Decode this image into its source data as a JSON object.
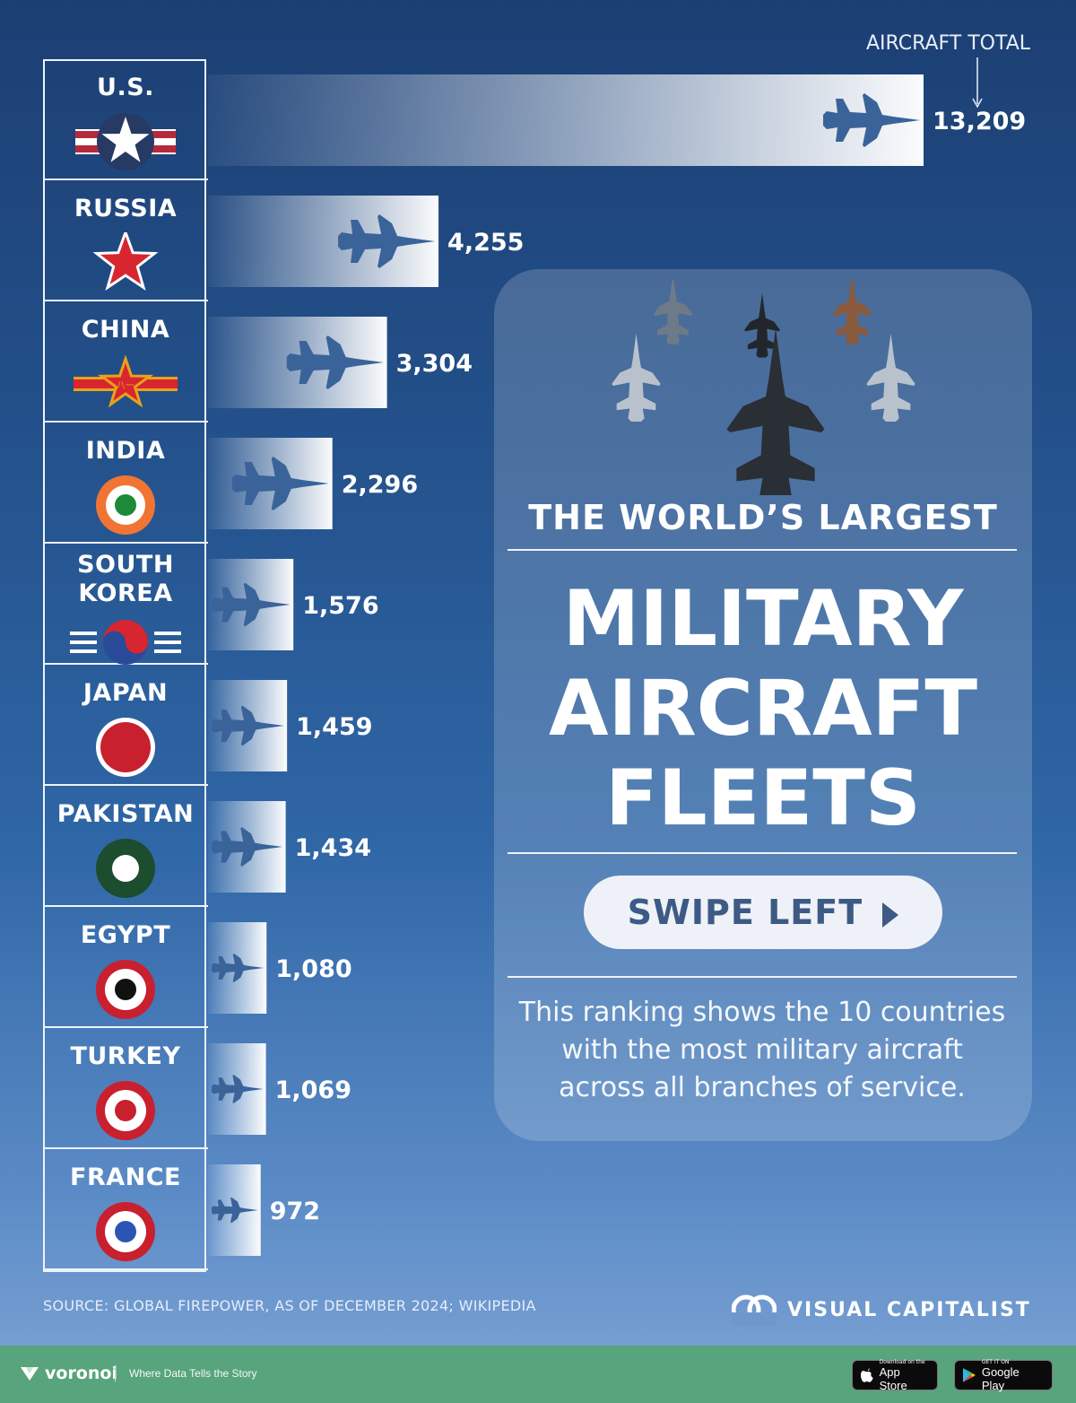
{
  "chart_data": {
    "type": "bar",
    "orientation": "horizontal",
    "value_label": "AIRCRAFT TOTAL",
    "categories": [
      "U.S.",
      "RUSSIA",
      "CHINA",
      "INDIA",
      "SOUTH KOREA",
      "JAPAN",
      "PAKISTAN",
      "EGYPT",
      "TURKEY",
      "FRANCE"
    ],
    "values": [
      13209,
      4255,
      3304,
      2296,
      1576,
      1459,
      1434,
      1080,
      1069,
      972
    ],
    "value_labels": [
      "13,209",
      "4,255",
      "3,304",
      "2,296",
      "1,576",
      "1,459",
      "1,434",
      "1,080",
      "1,069",
      "972"
    ],
    "xlim": [
      0,
      13209
    ],
    "grid": false,
    "legend": "none"
  },
  "rows": [
    {
      "name_lines": [
        "U.S."
      ],
      "roundel": "us-star-roundel-icon"
    },
    {
      "name_lines": [
        "RUSSIA"
      ],
      "roundel": "red-star-roundel-icon"
    },
    {
      "name_lines": [
        "CHINA"
      ],
      "roundel": "china-star-roundel-icon"
    },
    {
      "name_lines": [
        "INDIA"
      ],
      "roundel": "india-roundel-icon"
    },
    {
      "name_lines": [
        "SOUTH",
        "KOREA"
      ],
      "roundel": "korea-roundel-icon"
    },
    {
      "name_lines": [
        "JAPAN"
      ],
      "roundel": "japan-hinomaru-icon"
    },
    {
      "name_lines": [
        "PAKISTAN"
      ],
      "roundel": "pakistan-roundel-icon"
    },
    {
      "name_lines": [
        "EGYPT"
      ],
      "roundel": "egypt-roundel-icon"
    },
    {
      "name_lines": [
        "TURKEY"
      ],
      "roundel": "turkey-roundel-icon"
    },
    {
      "name_lines": [
        "FRANCE"
      ],
      "roundel": "france-roundel-icon"
    }
  ],
  "card": {
    "title_small": "THE WORLD’S LARGEST",
    "title_lines": [
      "MILITARY",
      "AIRCRAFT",
      "FLEETS"
    ],
    "swipe_label": "SWIPE LEFT",
    "description_lines": [
      "This ranking shows the 10 countries",
      "with the most military aircraft",
      "across all branches of service."
    ]
  },
  "source": "SOURCE: GLOBAL FIREPOWER, AS OF DECEMBER 2024; WIKIPEDIA",
  "brand": "VISUAL CAPITALIST",
  "footer": {
    "logo_text": "voronoi",
    "tagline": "Where Data Tells the Story",
    "app_store_small": "Download on the",
    "app_store_big": "App Store",
    "google_small": "GET IT ON",
    "google_big": "Google Play"
  },
  "colors": {
    "bar_fill": "#ffffff",
    "background_top": "#1c3f73",
    "background_bottom": "#7fa5d6",
    "jet_silhouette": "#3a639a",
    "footer_green": "#58a47d"
  }
}
